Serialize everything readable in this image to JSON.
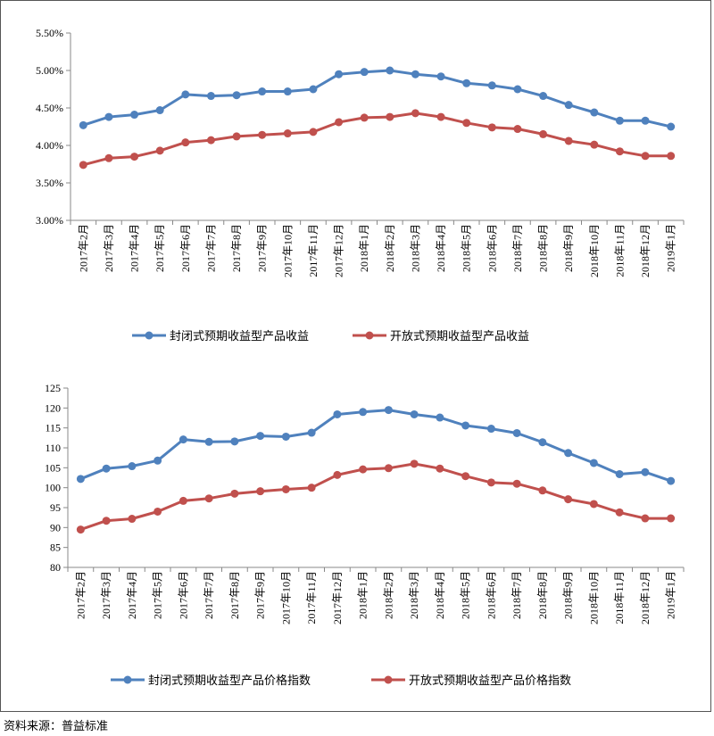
{
  "source_note": "资料来源：普益标准",
  "colors": {
    "series1": "#4f81bd",
    "series2": "#c0504d",
    "axis": "#888888"
  },
  "chart_data": [
    {
      "type": "line",
      "title": "",
      "xlabel": "",
      "ylabel": "",
      "ylim": [
        3.0,
        5.5
      ],
      "y_ticks": [
        3.0,
        3.5,
        4.0,
        4.5,
        5.0,
        5.5
      ],
      "y_tick_labels": [
        "3.00%",
        "3.50%",
        "4.00%",
        "4.50%",
        "5.00%",
        "5.50%"
      ],
      "categories": [
        "2017年2月",
        "2017年3月",
        "2017年4月",
        "2017年5月",
        "2017年6月",
        "2017年7月",
        "2017年8月",
        "2017年9月",
        "2017年10月",
        "2017年11月",
        "2017年12月",
        "2018年1月",
        "2018年2月",
        "2018年3月",
        "2018年4月",
        "2018年5月",
        "2018年6月",
        "2018年7月",
        "2018年8月",
        "2018年9月",
        "2018年10月",
        "2018年11月",
        "2018年12月",
        "2019年1月"
      ],
      "legend_position": "bottom",
      "series": [
        {
          "name": "封闭式预期收益型产品收益",
          "values": [
            4.27,
            4.38,
            4.41,
            4.47,
            4.68,
            4.66,
            4.67,
            4.72,
            4.72,
            4.75,
            4.95,
            4.98,
            5.0,
            4.95,
            4.92,
            4.83,
            4.8,
            4.75,
            4.66,
            4.54,
            4.44,
            4.33,
            4.33,
            4.25
          ]
        },
        {
          "name": "开放式预期收益型产品收益",
          "values": [
            3.74,
            3.83,
            3.85,
            3.93,
            4.04,
            4.07,
            4.12,
            4.14,
            4.16,
            4.18,
            4.31,
            4.37,
            4.38,
            4.43,
            4.38,
            4.3,
            4.24,
            4.22,
            4.15,
            4.06,
            4.01,
            3.92,
            3.86,
            3.86
          ]
        }
      ]
    },
    {
      "type": "line",
      "title": "",
      "xlabel": "",
      "ylabel": "",
      "ylim": [
        80,
        125
      ],
      "y_ticks": [
        80,
        85,
        90,
        95,
        100,
        105,
        110,
        115,
        120,
        125
      ],
      "y_tick_labels": [
        "80",
        "85",
        "90",
        "95",
        "100",
        "105",
        "110",
        "115",
        "120",
        "125"
      ],
      "categories": [
        "2017年2月",
        "2017年3月",
        "2017年4月",
        "2017年5月",
        "2017年6月",
        "2017年7月",
        "2017年8月",
        "2017年9月",
        "2017年10月",
        "2017年11月",
        "2017年12月",
        "2018年1月",
        "2018年2月",
        "2018年3月",
        "2018年4月",
        "2018年5月",
        "2018年6月",
        "2018年7月",
        "2018年8月",
        "2018年9月",
        "2018年10月",
        "2018年11月",
        "2018年12月",
        "2019年1月"
      ],
      "legend_position": "bottom",
      "series": [
        {
          "name": "封闭式预期收益型产品价格指数",
          "values": [
            102.2,
            104.8,
            105.4,
            106.8,
            112.1,
            111.5,
            111.6,
            113.0,
            112.8,
            113.8,
            118.4,
            119.0,
            119.5,
            118.4,
            117.6,
            115.6,
            114.8,
            113.7,
            111.4,
            108.7,
            106.2,
            103.4,
            103.9,
            101.7
          ]
        },
        {
          "name": "开放式预期收益型产品价格指数",
          "values": [
            89.5,
            91.7,
            92.2,
            94.0,
            96.7,
            97.3,
            98.5,
            99.1,
            99.6,
            100.0,
            103.2,
            104.6,
            104.9,
            106.0,
            104.8,
            102.9,
            101.3,
            101.0,
            99.3,
            97.1,
            95.9,
            93.8,
            92.3,
            92.3
          ]
        }
      ]
    }
  ]
}
